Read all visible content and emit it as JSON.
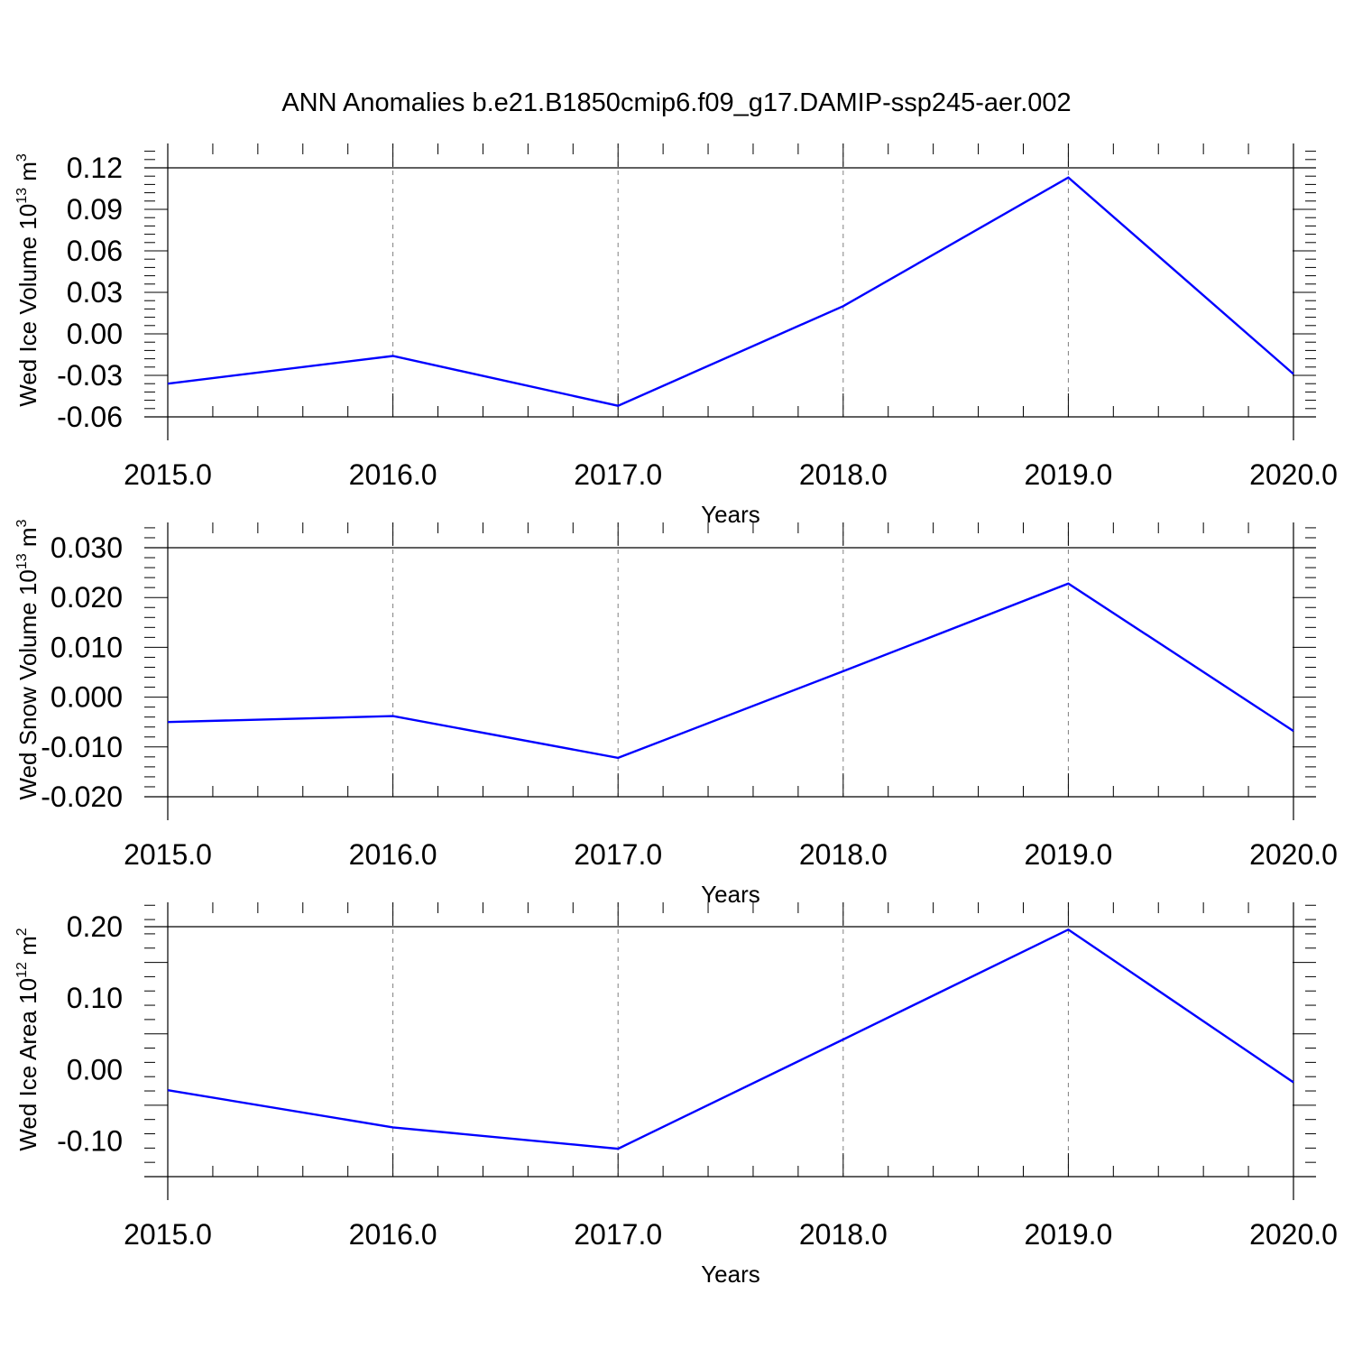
{
  "title": "ANN Anomalies b.e21.B1850cmip6.f09_g17.DAMIP-ssp245-aer.002",
  "colors": {
    "line": "#0000ff",
    "axis": "#000000",
    "grid": "#808080"
  },
  "chart_data": [
    {
      "type": "line",
      "ylabel": {
        "text": "Wed Ice Volume 10",
        "exp": "13",
        "unit": " m",
        "unit_exp": "3"
      },
      "xlabel": "Years",
      "x": [
        2015,
        2016,
        2017,
        2018,
        2019,
        2020
      ],
      "values": [
        -0.036,
        -0.016,
        -0.052,
        0.02,
        0.113,
        -0.029
      ],
      "xlim": [
        2015,
        2020
      ],
      "ylim": [
        -0.06,
        0.12
      ],
      "yticks": [
        -0.06,
        -0.03,
        0.0,
        0.03,
        0.06,
        0.09,
        0.12
      ],
      "ytick_labels": [
        "-0.06",
        "-0.03",
        "0.00",
        "0.03",
        "0.06",
        "0.09",
        "0.12"
      ],
      "xticks": [
        2015,
        2016,
        2017,
        2018,
        2019,
        2020
      ],
      "xtick_labels": [
        "2015.0",
        "2016.0",
        "2017.0",
        "2018.0",
        "2019.0",
        "2020.0"
      ],
      "grid": "vertical dashed"
    },
    {
      "type": "line",
      "ylabel": {
        "text": "Wed Snow Volume 10",
        "exp": "13",
        "unit": " m",
        "unit_exp": "3"
      },
      "xlabel": "Years",
      "x": [
        2015,
        2016,
        2017,
        2018,
        2019,
        2020
      ],
      "values": [
        -0.005,
        -0.0038,
        -0.0122,
        0.0052,
        0.0228,
        -0.0068
      ],
      "xlim": [
        2015,
        2020
      ],
      "ylim": [
        -0.02,
        0.03
      ],
      "yticks": [
        -0.02,
        -0.01,
        0.0,
        0.01,
        0.02,
        0.03
      ],
      "ytick_labels": [
        "-0.020",
        "-0.010",
        "0.000",
        "0.010",
        "0.020",
        "0.030"
      ],
      "xticks": [
        2015,
        2016,
        2017,
        2018,
        2019,
        2020
      ],
      "xtick_labels": [
        "2015.0",
        "2016.0",
        "2017.0",
        "2018.0",
        "2019.0",
        "2020.0"
      ],
      "grid": "vertical dashed"
    },
    {
      "type": "line",
      "ylabel": {
        "text": "Wed Ice Area 10",
        "exp": "12",
        "unit": " m",
        "unit_exp": "2"
      },
      "xlabel": "Years",
      "x": [
        2015,
        2016,
        2017,
        2018,
        2019,
        2020
      ],
      "values": [
        -0.029,
        -0.081,
        -0.111,
        0.042,
        0.196,
        -0.018
      ],
      "xlim": [
        2015,
        2020
      ],
      "ylim": [
        -0.15,
        0.2
      ],
      "yticks": [
        -0.1,
        0.0,
        0.1,
        0.2
      ],
      "ytick_labels": [
        "-0.10",
        "0.00",
        "0.10",
        "0.20"
      ],
      "xticks": [
        2015,
        2016,
        2017,
        2018,
        2019,
        2020
      ],
      "xtick_labels": [
        "2015.0",
        "2016.0",
        "2017.0",
        "2018.0",
        "2019.0",
        "2020.0"
      ],
      "grid": "vertical dashed"
    }
  ]
}
